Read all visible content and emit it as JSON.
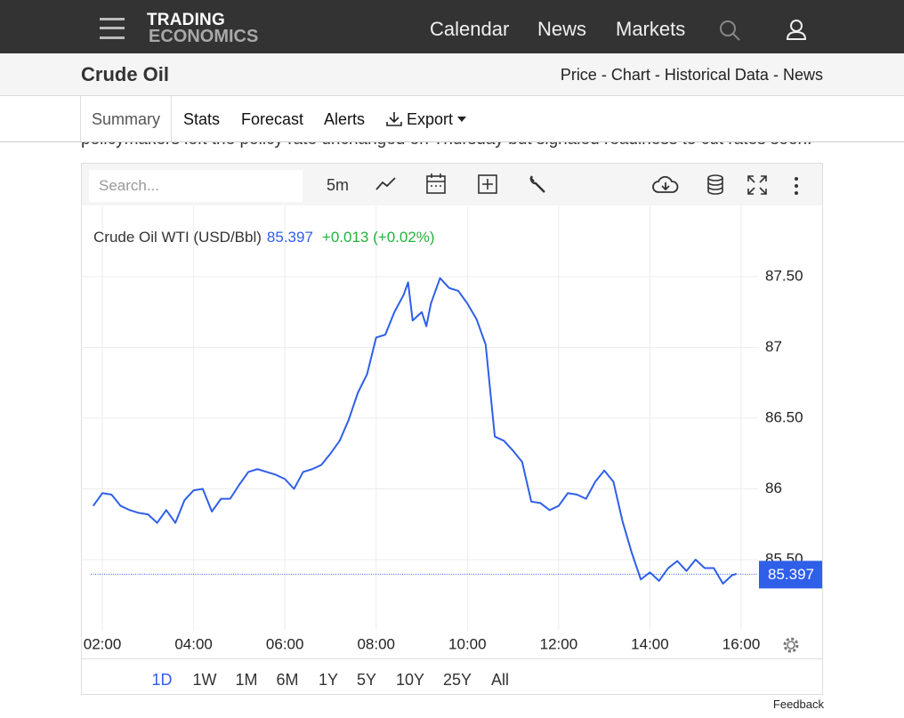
{
  "header": {
    "logo_top": "TRADING",
    "logo_bottom": "ECONOMICS",
    "nav": [
      "Calendar",
      "News",
      "Markets"
    ]
  },
  "title_bar": {
    "title": "Crude Oil",
    "links": [
      "Price",
      "Chart",
      "Historical Data",
      "News"
    ],
    "separator": "-"
  },
  "tabs": [
    "Summary",
    "Stats",
    "Forecast",
    "Alerts",
    "Export"
  ],
  "active_tab_index": 0,
  "article_snippet": "policymakers left the policy rate unchanged on Thursday but signaled readiness to cut rates soon.",
  "toolbar": {
    "search_placeholder": "Search...",
    "interval": "5m"
  },
  "chart_data": {
    "type": "line",
    "series": [
      {
        "name": "Crude Oil WTI (USD/Bbl)",
        "color": "#2f5fe8",
        "values": [
          85.88,
          85.97,
          85.96,
          85.88,
          85.85,
          85.83,
          85.82,
          85.76,
          85.85,
          85.76,
          85.92,
          85.99,
          86.0,
          85.84,
          85.93,
          85.93,
          86.03,
          86.12,
          86.14,
          86.12,
          86.1,
          86.07,
          86.0,
          86.12,
          86.14,
          86.17,
          86.25,
          86.34,
          86.49,
          86.68,
          86.81,
          87.07,
          87.09,
          87.25,
          87.37,
          87.46,
          87.19,
          87.25,
          87.15,
          87.31,
          87.49,
          87.42,
          87.4,
          87.31,
          87.2,
          87.02,
          86.37,
          86.34,
          86.27,
          86.19,
          85.91,
          85.9,
          85.85,
          85.88,
          85.97,
          85.96,
          85.93,
          86.05,
          86.13,
          86.05,
          85.77,
          85.55,
          85.36,
          85.41,
          85.35,
          85.44,
          85.49,
          85.42,
          85.5,
          85.44,
          85.44,
          85.33,
          85.39,
          85.4
        ]
      }
    ],
    "x": [
      1.8,
      2.0,
      2.2,
      2.4,
      2.6,
      2.8,
      3.0,
      3.2,
      3.4,
      3.6,
      3.8,
      4.0,
      4.2,
      4.4,
      4.6,
      4.8,
      5.0,
      5.2,
      5.4,
      5.6,
      5.8,
      6.0,
      6.2,
      6.4,
      6.6,
      6.8,
      7.0,
      7.2,
      7.4,
      7.6,
      7.8,
      8.0,
      8.2,
      8.4,
      8.6,
      8.7,
      8.8,
      9.0,
      9.1,
      9.2,
      9.4,
      9.6,
      9.8,
      10.0,
      10.2,
      10.4,
      10.6,
      10.8,
      11.0,
      11.2,
      11.4,
      11.6,
      11.8,
      12.0,
      12.2,
      12.4,
      12.6,
      12.8,
      13.0,
      13.2,
      13.4,
      13.6,
      13.8,
      14.0,
      14.2,
      14.4,
      14.6,
      14.8,
      15.0,
      15.2,
      15.4,
      15.6,
      15.8,
      15.9
    ],
    "last_price": 85.397,
    "change_text": "+0.013 (+0.02%)",
    "xlim": [
      1.57,
      16.37
    ],
    "xticks": [
      {
        "value": 2,
        "label": "02:00"
      },
      {
        "value": 4,
        "label": "04:00"
      },
      {
        "value": 6,
        "label": "06:00"
      },
      {
        "value": 8,
        "label": "08:00"
      },
      {
        "value": 10,
        "label": "10:00"
      },
      {
        "value": 12,
        "label": "12:00"
      },
      {
        "value": 14,
        "label": "14:00"
      },
      {
        "value": 16,
        "label": "16:00"
      }
    ],
    "ylim": [
      85,
      88
    ],
    "yticks": [
      {
        "value": 85.5,
        "label": "85.50"
      },
      86,
      {
        "value": 86.5,
        "label": "86.50"
      },
      87,
      {
        "value": 87.5,
        "label": "87.50"
      }
    ],
    "grid": true
  },
  "range_buttons": [
    "1D",
    "1W",
    "1M",
    "6M",
    "1Y",
    "5Y",
    "10Y",
    "25Y",
    "All"
  ],
  "active_range_index": 0,
  "feedback": "Feedback"
}
